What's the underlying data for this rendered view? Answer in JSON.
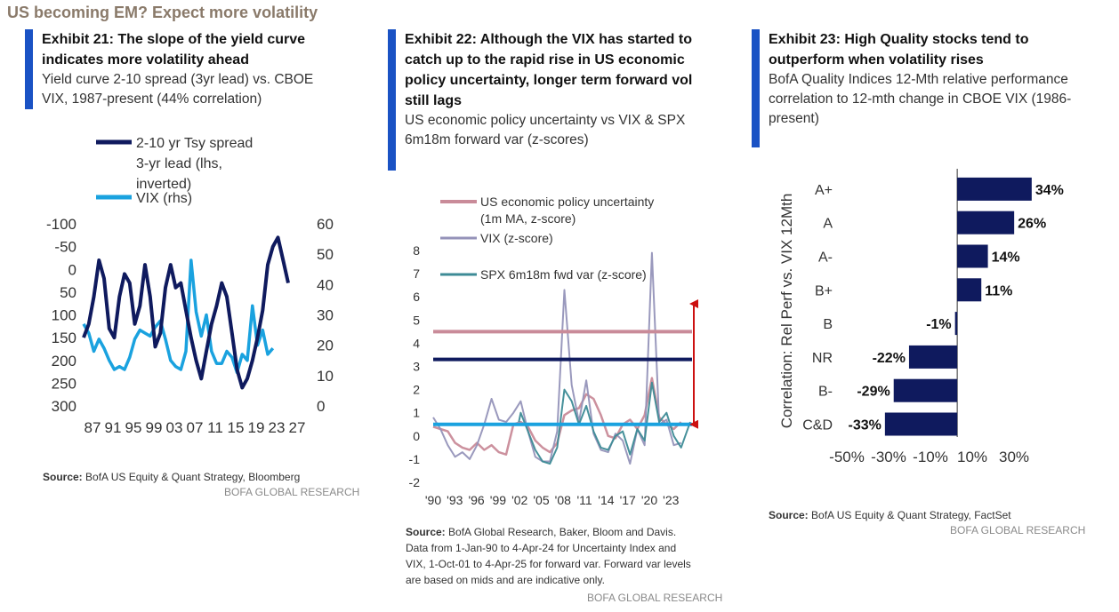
{
  "page_title": "US becoming EM? Expect more volatility",
  "colors": {
    "accent": "#1a52c4",
    "navy": "#0f1a5e",
    "lightblue": "#1aa2df",
    "pink": "#c98b99",
    "grayviolet": "#9593b9",
    "teal": "#3d8b96",
    "red": "#cc1111"
  },
  "exhibits": [
    {
      "title": "Exhibit 21: The slope of the yield curve indicates more volatility ahead",
      "subtitle": "Yield curve 2-10 spread (3yr lead) vs. CBOE VIX, 1987-present (44% correlation)",
      "source_label": "Source:",
      "source_text": " BofA US Equity & Quant Strategy, Bloomberg",
      "brand": "BofA GLOBAL RESEARCH"
    },
    {
      "title": "Exhibit 22: Although the VIX has started to catch up to the rapid rise in US economic policy uncertainty, longer term forward vol still lags",
      "subtitle": "US economic policy uncertainty vs VIX & SPX 6m18m forward var (z-scores)",
      "source_label": "Source:",
      "source_text": " BofA Global Research, Baker, Bloom and Davis. Data from 1-Jan-90 to 4-Apr-24 for Uncertainty Index and VIX, 1-Oct-01 to 4-Apr-25 for forward var. Forward var levels are based on mids and are indicative only.",
      "brand": "BofA GLOBAL RESEARCH"
    },
    {
      "title": "Exhibit 23: High Quality stocks tend to outperform when volatility rises",
      "subtitle": "BofA Quality Indices 12-Mth relative performance correlation to 12-mth change in CBOE VIX (1986-present)",
      "source_label": "Source:",
      "source_text": " BofA US Equity & Quant Strategy, FactSet",
      "brand": "BofA GLOBAL RESEARCH"
    }
  ],
  "chart_data": [
    {
      "type": "line",
      "legend": [
        "2-10 yr Tsy spread 3-yr lead (lhs, inverted)",
        "VIX (rhs)"
      ],
      "x_ticks": [
        "87",
        "91",
        "95",
        "99",
        "03",
        "07",
        "11",
        "15",
        "19",
        "23",
        "27"
      ],
      "y_left_ticks": [
        "-100",
        "-50",
        "0",
        "50",
        "100",
        "150",
        "200",
        "250",
        "300"
      ],
      "y_left_range": [
        -100,
        300
      ],
      "y_left_inverted": true,
      "y_right_ticks": [
        "60",
        "50",
        "40",
        "30",
        "20",
        "10",
        "0"
      ],
      "y_right_range": [
        0,
        60
      ],
      "series": [
        {
          "name": "2-10 yr Tsy spread 3-yr lead",
          "axis": "left",
          "x": [
            1987,
            1988,
            1989,
            1990,
            1991,
            1992,
            1993,
            1994,
            1995,
            1996,
            1997,
            1998,
            1999,
            2000,
            2001,
            2002,
            2003,
            2004,
            2005,
            2006,
            2007,
            2008,
            2009,
            2010,
            2011,
            2012,
            2013,
            2014,
            2015,
            2016,
            2017,
            2018,
            2019,
            2020,
            2021,
            2022,
            2023,
            2024,
            2025,
            2026,
            2027
          ],
          "values": [
            150,
            120,
            60,
            -20,
            20,
            130,
            150,
            60,
            10,
            30,
            120,
            80,
            -10,
            60,
            170,
            140,
            40,
            -10,
            40,
            30,
            90,
            150,
            200,
            240,
            180,
            120,
            80,
            30,
            60,
            140,
            220,
            260,
            240,
            200,
            150,
            90,
            -10,
            -50,
            -70,
            -20,
            30
          ]
        },
        {
          "name": "VIX",
          "axis": "right",
          "x": [
            1987,
            1988,
            1989,
            1990,
            1991,
            1992,
            1993,
            1994,
            1995,
            1996,
            1997,
            1998,
            1999,
            2000,
            2001,
            2002,
            2003,
            2004,
            2005,
            2006,
            2007,
            2008,
            2009,
            2010,
            2011,
            2012,
            2013,
            2014,
            2015,
            2016,
            2017,
            2018,
            2019,
            2020,
            2021,
            2022,
            2023,
            2024
          ],
          "values": [
            27,
            24,
            18,
            22,
            19,
            15,
            12,
            13,
            12,
            16,
            22,
            25,
            24,
            23,
            26,
            28,
            22,
            15,
            13,
            12,
            18,
            48,
            31,
            23,
            30,
            18,
            14,
            14,
            18,
            16,
            11,
            17,
            15,
            33,
            20,
            25,
            17,
            19
          ]
        }
      ]
    },
    {
      "type": "line",
      "legend": [
        "US economic policy uncertainty (1m MA, z-score)",
        "VIX (z-score)",
        "SPX 6m18m fwd var (z-score)"
      ],
      "x_ticks": [
        "'90",
        "'93",
        "'96",
        "'99",
        "'02",
        "'05",
        "'08",
        "'11",
        "'14",
        "'17",
        "'20",
        "'23"
      ],
      "y_ticks": [
        "8",
        "7",
        "6",
        "5",
        "4",
        "3",
        "2",
        "1",
        "0",
        "-1",
        "-2"
      ],
      "y_range": [
        -2,
        8
      ],
      "series": [
        {
          "name": "US economic policy uncertainty",
          "x": [
            1990,
            1991,
            1992,
            1993,
            1994,
            1995,
            1996,
            1997,
            1998,
            1999,
            2000,
            2001,
            2002,
            2003,
            2004,
            2005,
            2006,
            2007,
            2008,
            2009,
            2010,
            2011,
            2012,
            2013,
            2014,
            2015,
            2016,
            2017,
            2018,
            2019,
            2020,
            2021,
            2022,
            2023,
            2024
          ],
          "values": [
            0.4,
            0.3,
            0.2,
            -0.3,
            -0.5,
            -0.6,
            -0.3,
            -0.6,
            -0.4,
            -0.7,
            -0.8,
            0.5,
            0.6,
            0.4,
            -0.2,
            -0.5,
            -0.7,
            -0.3,
            0.9,
            1.1,
            1.2,
            1.8,
            1.6,
            0.9,
            0.0,
            -0.1,
            0.5,
            0.7,
            0.3,
            0.9,
            2.5,
            0.8,
            0.5,
            0.3,
            0.6
          ]
        },
        {
          "name": "VIX",
          "x": [
            1990,
            1991,
            1992,
            1993,
            1994,
            1995,
            1996,
            1997,
            1998,
            1999,
            2000,
            2001,
            2002,
            2003,
            2004,
            2005,
            2006,
            2007,
            2008,
            2009,
            2010,
            2011,
            2012,
            2013,
            2014,
            2015,
            2016,
            2017,
            2018,
            2019,
            2020,
            2021,
            2022,
            2023,
            2024
          ],
          "values": [
            0.8,
            0.3,
            -0.4,
            -0.9,
            -0.7,
            -1.0,
            -0.4,
            0.5,
            1.6,
            0.7,
            0.6,
            1.0,
            1.5,
            0.2,
            -0.9,
            -1.1,
            -1.1,
            0.2,
            6.3,
            2.2,
            0.6,
            2.4,
            0.1,
            -0.6,
            -0.7,
            0.1,
            -0.2,
            -1.2,
            0.3,
            -0.4,
            7.9,
            0.5,
            0.7,
            -0.4,
            -0.3
          ]
        },
        {
          "name": "SPX 6m18m fwd var",
          "x": [
            2001.75,
            2002,
            2003,
            2004,
            2005,
            2006,
            2007,
            2008,
            2009,
            2010,
            2011,
            2012,
            2013,
            2014,
            2015,
            2016,
            2017,
            2018,
            2019,
            2020,
            2021,
            2022,
            2023,
            2024,
            2025.25
          ],
          "values": [
            0.6,
            1.0,
            0.2,
            -0.6,
            -1.1,
            -1.2,
            -0.5,
            2.0,
            1.5,
            0.5,
            1.3,
            0.2,
            -0.5,
            -0.6,
            0.0,
            0.2,
            -0.8,
            0.3,
            -0.2,
            2.3,
            0.6,
            1.0,
            0.0,
            -0.5,
            0.6
          ]
        }
      ],
      "reference_levels": [
        {
          "name": "policy uncertainty current",
          "value": 4.5
        },
        {
          "name": "VIX current",
          "value": 3.3
        },
        {
          "name": "fwd var current",
          "value": 0.5
        }
      ],
      "gap_arrow": {
        "from": 0.5,
        "to": 5.7
      }
    },
    {
      "type": "bar",
      "orientation": "horizontal",
      "ylabel": "Correlation: Rel Perf vs. VIX 12Mth",
      "categories": [
        "A+",
        "A",
        "A-",
        "B+",
        "B",
        "NR",
        "B-",
        "C&D"
      ],
      "values": [
        34,
        26,
        14,
        11,
        -1,
        -22,
        -29,
        -33
      ],
      "value_labels": [
        "34%",
        "26%",
        "14%",
        "11%",
        "-1%",
        "-22%",
        "-29%",
        "-33%"
      ],
      "x_ticks": [
        "-50%",
        "-30%",
        "-10%",
        "10%",
        "30%"
      ],
      "x_tick_values": [
        -50,
        -30,
        -10,
        10,
        30
      ],
      "xlim": [
        -50,
        30
      ]
    }
  ]
}
